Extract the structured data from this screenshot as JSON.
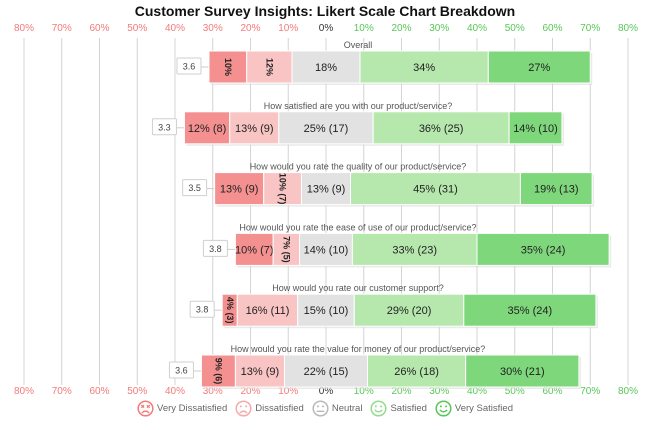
{
  "chart_data": {
    "type": "bar",
    "subtype": "diverging-stacked",
    "title": "Customer Survey Insights: Likert Scale Chart Breakdown",
    "x_ticks": [
      "80%",
      "70%",
      "60%",
      "50%",
      "40%",
      "30%",
      "20%",
      "10%",
      "0%",
      "10%",
      "20%",
      "30%",
      "40%",
      "50%",
      "60%",
      "70%",
      "80%"
    ],
    "xlim": [
      -80,
      80
    ],
    "grid": true,
    "legend_position": "bottom",
    "categories": [
      "Very Dissatisfied",
      "Dissatisfied",
      "Neutral",
      "Satisfied",
      "Very Satisfied"
    ],
    "colors": [
      "#f49090",
      "#f9c4c4",
      "#e2e2e2",
      "#b6e8ae",
      "#7fd77c"
    ],
    "legend_icon_colors": [
      "#f37a7a",
      "#f6a9a9",
      "#b9b9b9",
      "#93dc8e",
      "#57c856"
    ],
    "rows": [
      {
        "question": "Overall",
        "score": "3.6",
        "values": [
          10,
          12,
          18,
          34,
          27
        ],
        "labels": [
          "10%",
          "12%",
          "18%",
          "34%",
          "27%"
        ],
        "rotated": [
          true,
          true,
          false,
          false,
          false
        ]
      },
      {
        "question": "How satisfied are you with our product/service?",
        "score": "3.3",
        "values": [
          12,
          13,
          25,
          36,
          14
        ],
        "labels": [
          "12% (8)",
          "13% (9)",
          "25% (17)",
          "36% (25)",
          "14% (10)"
        ],
        "rotated": [
          false,
          false,
          false,
          false,
          false
        ]
      },
      {
        "question": "How would you rate the quality of our product/service?",
        "score": "3.5",
        "values": [
          13,
          10,
          13,
          45,
          19
        ],
        "labels": [
          "13% (9)",
          "10% (7)",
          "13% (9)",
          "45% (31)",
          "19% (13)"
        ],
        "rotated": [
          false,
          true,
          false,
          false,
          false
        ]
      },
      {
        "question": "How would you rate the ease of use of our product/service?",
        "score": "3.8",
        "values": [
          10,
          7,
          14,
          33,
          35
        ],
        "labels": [
          "10% (7)",
          "7% (5)",
          "14% (10)",
          "33% (23)",
          "35% (24)"
        ],
        "rotated": [
          false,
          true,
          false,
          false,
          false
        ]
      },
      {
        "question": "How would you rate our customer support?",
        "score": "3.8",
        "values": [
          4,
          16,
          15,
          29,
          35
        ],
        "labels": [
          "4% (3)",
          "16% (11)",
          "15% (10)",
          "29% (20)",
          "35% (24)"
        ],
        "rotated": [
          true,
          false,
          false,
          false,
          false
        ]
      },
      {
        "question": "How would you rate the value for money of our product/service?",
        "score": "3.6",
        "values": [
          9,
          13,
          22,
          26,
          30
        ],
        "labels": [
          "9% (6)",
          "13% (9)",
          "22% (15)",
          "26% (18)",
          "30% (21)"
        ],
        "rotated": [
          true,
          false,
          false,
          false,
          false
        ]
      }
    ]
  }
}
